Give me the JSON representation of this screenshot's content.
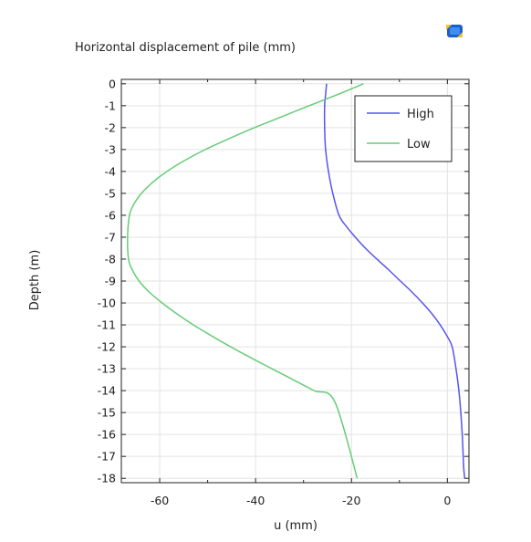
{
  "colors": {
    "high": "#5555ee",
    "low": "#66cc77",
    "grid": "#e3e3e3",
    "frame": "#222222"
  },
  "icons": {
    "toolbar": "plot-view-icon"
  },
  "chart_data": {
    "type": "line",
    "title": "Horizontal displacement of pile (mm)",
    "xlabel": "u (mm)",
    "ylabel": "Depth (m)",
    "xlim": [
      -68,
      4.5
    ],
    "ylim": [
      -18.2,
      0.2
    ],
    "grid": true,
    "legend_position": "top-right",
    "xticks": [
      -60,
      -40,
      -20,
      0
    ],
    "xtick_labels": [
      "-60",
      "-40",
      "-20",
      "0"
    ],
    "yticks": [
      0,
      -1,
      -2,
      -3,
      -4,
      -5,
      -6,
      -7,
      -8,
      -9,
      -10,
      -11,
      -12,
      -13,
      -14,
      -15,
      -16,
      -17,
      -18
    ],
    "ytick_labels": [
      "0",
      "-1",
      "-2",
      "-3",
      "-4",
      "-5",
      "-6",
      "-7",
      "-8",
      "-9",
      "-10",
      "-11",
      "-12",
      "-13",
      "-14",
      "-15",
      "-16",
      "-17",
      "-18"
    ],
    "series": [
      {
        "name": "High",
        "color": "#5555ee",
        "x": [
          -25.2,
          -25.4,
          -25.6,
          -25.6,
          -25.4,
          -24.8,
          -23.9,
          -22.6,
          -21.1,
          -19.2,
          -17.1,
          -14.7,
          -12.2,
          -9.8,
          -7.4,
          -5.2,
          -3.2,
          -1.5,
          -0.1,
          1.0,
          1.8,
          2.4,
          2.8,
          3.1,
          3.3,
          3.4,
          3.6
        ],
        "y": [
          0,
          -0.5,
          -1,
          -2,
          -3,
          -4,
          -5,
          -6,
          -6.5,
          -7,
          -7.5,
          -8,
          -8.5,
          -9,
          -9.5,
          -10,
          -10.5,
          -11,
          -11.5,
          -12,
          -13,
          -14,
          -15,
          -16,
          -17,
          -17.5,
          -18
        ]
      },
      {
        "name": "Low",
        "color": "#66cc77",
        "x": [
          -17.5,
          -23.0,
          -28.8,
          -34.5,
          -40.2,
          -45.5,
          -50.5,
          -54.8,
          -58.5,
          -61.5,
          -63.8,
          -65.4,
          -66.3,
          -66.7,
          -66.5,
          -65.7,
          -64.3,
          -62.2,
          -59.5,
          -56.4,
          -53.0,
          -49.2,
          -45.2,
          -41.0,
          -36.6,
          -32.2,
          -27.8,
          -23.5,
          -18.8
        ],
        "y": [
          0,
          -0.5,
          -1,
          -1.5,
          -2,
          -2.5,
          -3,
          -3.5,
          -4,
          -4.5,
          -5,
          -5.5,
          -6,
          -7,
          -8,
          -8.5,
          -9,
          -9.5,
          -10,
          -10.5,
          -11,
          -11.5,
          -12,
          -12.5,
          -13,
          -13.5,
          -14,
          -14.5,
          -18
        ]
      }
    ]
  }
}
